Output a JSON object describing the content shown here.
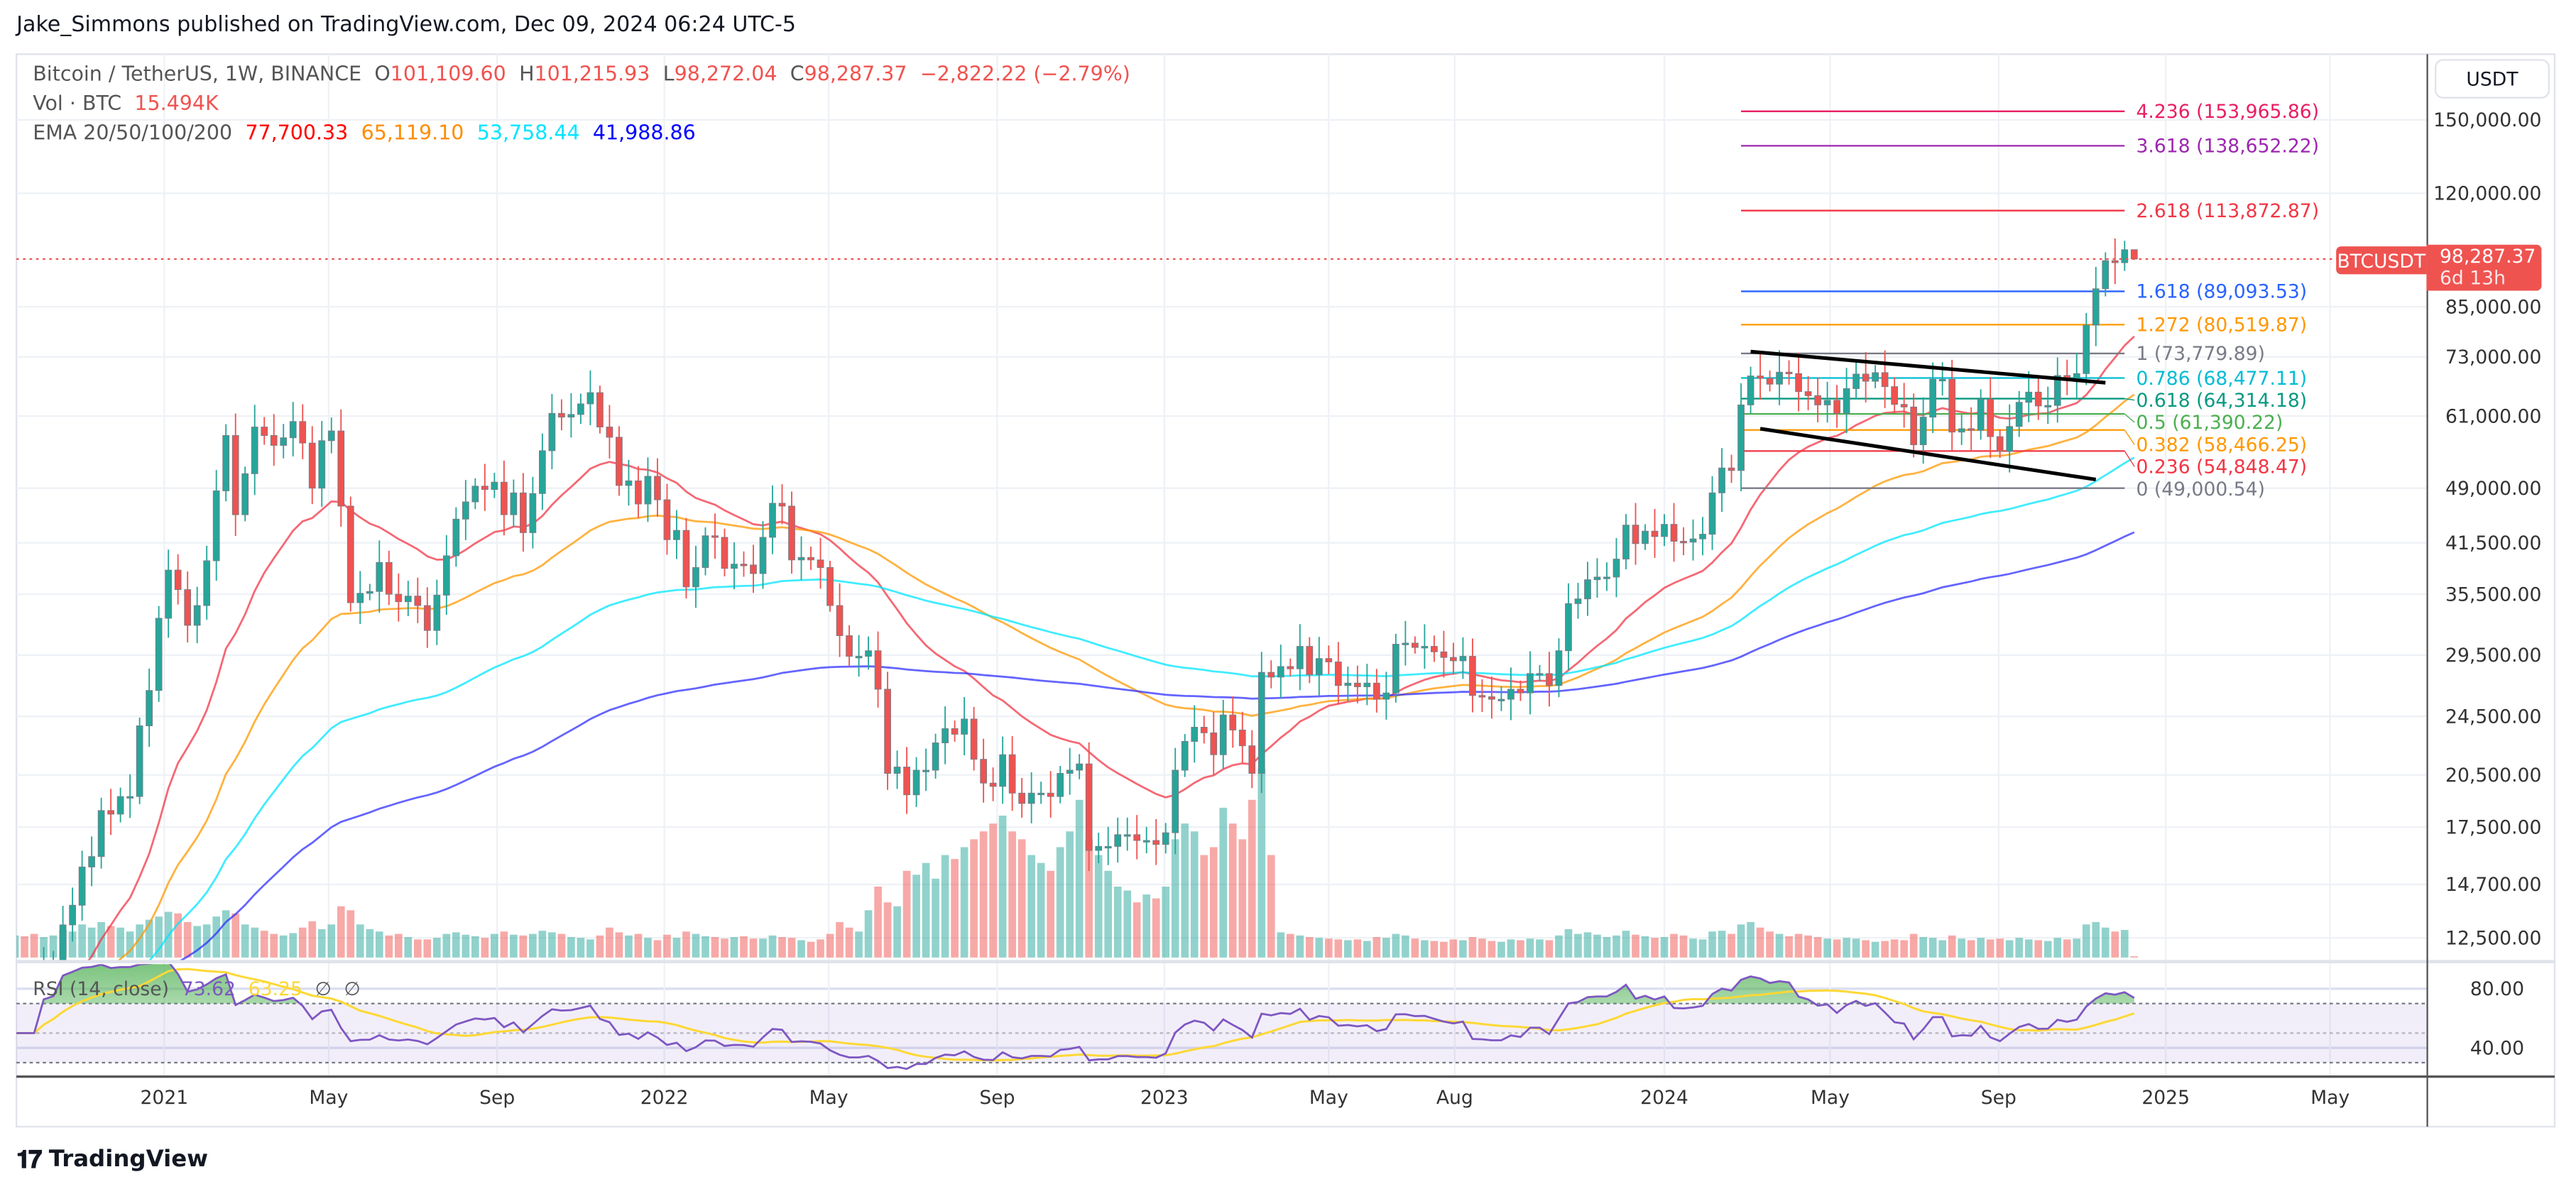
{
  "header": {
    "title": "Jake_Simmons published on TradingView.com, Dec 09, 2024 06:24 UTC-5"
  },
  "legend": {
    "symbol": "Bitcoin / TetherUS, 1W, BINANCE",
    "o_label": "O",
    "o": "101,109.60",
    "h_label": "H",
    "h": "101,215.93",
    "l_label": "L",
    "l": "98,272.04",
    "c_label": "C",
    "c": "98,287.37",
    "change": "−2,822.22 (−2.79%)",
    "vol_label": "Vol · BTC",
    "vol": "15.494K",
    "ema_label": "EMA 20/50/100/200",
    "ema_values": [
      "77,700.33",
      "65,119.10",
      "53,758.44",
      "41,988.86"
    ],
    "ema_colors": [
      "#ff0000",
      "#ff8c00",
      "#00e5ff",
      "#0000ff"
    ],
    "rsi_label": "RSI (14, close)",
    "rsi_value": "73.62",
    "rsi_ma_value": "63.25",
    "rsi_na1": "∅",
    "rsi_na2": "∅"
  },
  "price_axis": {
    "currency": "USDT",
    "labels": [
      "150,000.00",
      "120,000.00",
      "85,000.00",
      "73,000.00",
      "61,000.00",
      "49,000.00",
      "41,500.00",
      "35,500.00",
      "29,500.00",
      "24,500.00",
      "20,500.00",
      "17,500.00",
      "14,700.00",
      "12,500.00"
    ],
    "values": [
      150000,
      120000,
      85000,
      73000,
      61000,
      49000,
      41500,
      35500,
      29500,
      24500,
      20500,
      17500,
      14700,
      12500
    ],
    "last_symbol": "BTCUSDT",
    "last_price": "98,287.37",
    "countdown": "6d 13h"
  },
  "rsi_axis": {
    "labels": [
      "80.00",
      "40.00"
    ],
    "values": [
      80,
      40
    ]
  },
  "time_axis": [
    {
      "label": "2021",
      "date": "2021-01-01"
    },
    {
      "label": "May",
      "date": "2021-05-01"
    },
    {
      "label": "Sep",
      "date": "2021-09-01"
    },
    {
      "label": "2022",
      "date": "2022-01-01"
    },
    {
      "label": "May",
      "date": "2022-05-01"
    },
    {
      "label": "Sep",
      "date": "2022-09-01"
    },
    {
      "label": "2023",
      "date": "2023-01-01"
    },
    {
      "label": "May",
      "date": "2023-05-01"
    },
    {
      "label": "Aug",
      "date": "2023-08-01"
    },
    {
      "label": "2024",
      "date": "2024-01-01"
    },
    {
      "label": "May",
      "date": "2024-05-01"
    },
    {
      "label": "Sep",
      "date": "2024-09-01"
    },
    {
      "label": "2025",
      "date": "2025-01-01"
    },
    {
      "label": "May",
      "date": "2025-05-01"
    }
  ],
  "footer": {
    "brand": "TradingView",
    "logo": "TV"
  },
  "colors": {
    "up": "#26a69a",
    "down": "#ef5350",
    "rsi": "#7e57c2",
    "rsi_ma": "#fdd835",
    "last_price": "#ef5350"
  },
  "chart_data": {
    "type": "candlestick",
    "title": "Bitcoin / TetherUS, 1W, BINANCE",
    "y_scale": "log",
    "ylim": [
      10500,
      165000
    ],
    "grid": true,
    "first_week": "2020-09-14",
    "interval": "1W",
    "last_candle": {
      "open": 101109.6,
      "high": 101215.93,
      "low": 98272.04,
      "close": 98287.37
    },
    "weekly_close": [
      10900,
      10800,
      10600,
      11400,
      11500,
      13000,
      13800,
      15500,
      16000,
      18400,
      18200,
      19200,
      19200,
      23800,
      26500,
      33000,
      38200,
      36000,
      32300,
      34300,
      39300,
      48600,
      57500,
      45200,
      51200,
      59000,
      57500,
      55800,
      57100,
      60000,
      56200,
      49000,
      56600,
      58300,
      46400,
      34600,
      35600,
      35800,
      39100,
      35500,
      34700,
      35300,
      34300,
      31800,
      35400,
      39900,
      44600,
      47000,
      49300,
      48800,
      49900,
      45200,
      48300,
      42800,
      48200,
      54900,
      61500,
      60800,
      61300,
      63300,
      65500,
      59000,
      57200,
      49400,
      50100,
      46700,
      50800,
      47300,
      41900,
      43100,
      36300,
      38500,
      42400,
      42200,
      38400,
      38900,
      38800,
      37800,
      42200,
      46800,
      46400,
      39400,
      39700,
      39400,
      38500,
      34300,
      31300,
      29400,
      29400,
      29900,
      26600,
      20600,
      21000,
      19300,
      20800,
      20800,
      22600,
      23600,
      23200,
      24300,
      21500,
      20000,
      19800,
      21800,
      19400,
      18800,
      19400,
      19400,
      19200,
      20600,
      20800,
      21200,
      16300,
      16500,
      16500,
      17100,
      17100,
      16800,
      16800,
      16600,
      17200,
      20800,
      22700,
      23700,
      23300,
      21800,
      24600,
      23500,
      22400,
      20600,
      28000,
      27600,
      28500,
      28300,
      30300,
      27800,
      29200,
      28900,
      26900,
      27100,
      26800,
      27100,
      25800,
      26300,
      30500,
      30600,
      30200,
      30300,
      29800,
      29300,
      29000,
      29400,
      26100,
      26000,
      25800,
      25800,
      26600,
      26300,
      27900,
      27900,
      26900,
      29900,
      34500,
      35000,
      37100,
      37400,
      37400,
      39500,
      43800,
      41400,
      43000,
      42300,
      43900,
      41700,
      41600,
      42000,
      42600,
      48300,
      52100,
      51700,
      63100,
      68900,
      68400,
      67200,
      69700,
      69400,
      65700,
      64900,
      63100,
      64000,
      61500,
      66300,
      69300,
      67800,
      69600,
      66700,
      63200,
      62700,
      55900,
      60800,
      68200,
      68200,
      58100,
      58700,
      58400,
      64200,
      57300,
      54800,
      59100,
      63600,
      65600,
      62900,
      63000,
      69000,
      68000,
      69400,
      80400,
      89800,
      97800,
      97200,
      101109.6,
      98287.37
    ],
    "weekly_volume_k_btc": [
      280,
      270,
      300,
      260,
      280,
      350,
      330,
      420,
      380,
      450,
      400,
      380,
      330,
      420,
      480,
      520,
      580,
      560,
      450,
      400,
      420,
      520,
      600,
      560,
      420,
      380,
      340,
      300,
      280,
      310,
      380,
      460,
      360,
      420,
      650,
      600,
      420,
      360,
      330,
      280,
      300,
      260,
      230,
      230,
      250,
      300,
      320,
      290,
      270,
      250,
      300,
      330,
      290,
      280,
      300,
      340,
      320,
      300,
      260,
      250,
      230,
      280,
      380,
      320,
      280,
      300,
      250,
      220,
      290,
      250,
      330,
      300,
      270,
      260,
      240,
      260,
      270,
      240,
      240,
      280,
      260,
      250,
      220,
      200,
      230,
      300,
      450,
      380,
      330,
      600,
      900,
      700,
      650,
      1100,
      1050,
      1200,
      1000,
      1300,
      1250,
      1400,
      1500,
      1600,
      1700,
      1800,
      1600,
      1500,
      1300,
      1200,
      1100,
      1400,
      1600,
      2000,
      1500,
      1300,
      1100,
      900,
      850,
      700,
      800,
      750,
      900,
      1500,
      1700,
      1600,
      1300,
      1400,
      1900,
      1700,
      1500,
      2000,
      2400,
      1300,
      320,
      300,
      280,
      260,
      250,
      240,
      230,
      220,
      230,
      210,
      260,
      250,
      300,
      280,
      240,
      220,
      210,
      200,
      230,
      220,
      260,
      240,
      210,
      200,
      230,
      220,
      240,
      230,
      220,
      280,
      360,
      300,
      320,
      290,
      260,
      280,
      340,
      290,
      270,
      250,
      260,
      300,
      280,
      240,
      230,
      330,
      340,
      300,
      420,
      450,
      380,
      330,
      300,
      270,
      300,
      280,
      260,
      240,
      230,
      250,
      240,
      220,
      200,
      210,
      230,
      220,
      300,
      260,
      250,
      220,
      280,
      240,
      220,
      250,
      230,
      240,
      220,
      250,
      230,
      220,
      210,
      250,
      230,
      240,
      420,
      450,
      380,
      330,
      350,
      15.494
    ],
    "ema_periods": [
      20,
      50,
      100,
      200
    ],
    "ema_last": [
      77700.33,
      65119.1,
      53758.44,
      41988.86
    ],
    "rsi": {
      "period": 14,
      "ma_period": 14,
      "last": 73.62,
      "ma_last": 63.25,
      "upper": 70,
      "middle": 50,
      "lower": 30
    },
    "fibonacci": {
      "start_date": "2024-02-26",
      "end_date": "2024-12-02",
      "levels": [
        {
          "ratio": "4.236",
          "price": 153965.86,
          "label": "(153,965.86)",
          "color": "#e91e63"
        },
        {
          "ratio": "3.618",
          "price": 138652.22,
          "label": "(138,652.22)",
          "color": "#9c27b0"
        },
        {
          "ratio": "2.618",
          "price": 113872.87,
          "label": "(113,872.87)",
          "color": "#f23645"
        },
        {
          "ratio": "1.618",
          "price": 89093.53,
          "label": "(89,093.53)",
          "color": "#2962ff"
        },
        {
          "ratio": "1.272",
          "price": 80519.87,
          "label": "(80,519.87)",
          "color": "#ff9800"
        },
        {
          "ratio": "1",
          "price": 73779.89,
          "label": "(73,779.89)",
          "color": "#787b86"
        },
        {
          "ratio": "0.786",
          "price": 68477.11,
          "label": "(68,477.11)",
          "color": "#00bcd4"
        },
        {
          "ratio": "0.618",
          "price": 64314.18,
          "label": "(64,314.18)",
          "color": "#089981"
        },
        {
          "ratio": "0.5",
          "price": 61390.22,
          "label": "(61,390.22)",
          "color": "#4caf50"
        },
        {
          "ratio": "0.382",
          "price": 58466.25,
          "label": "(58,466.25)",
          "color": "#ff9800"
        },
        {
          "ratio": "0.236",
          "price": 54848.47,
          "label": "(54,848.47)",
          "color": "#f23645"
        },
        {
          "ratio": "0",
          "price": 49000.54,
          "label": "(49,000.54)",
          "color": "#787b86"
        }
      ]
    },
    "trendlines": [
      {
        "from": {
          "date": "2024-03-04",
          "price": 74200
        },
        "to": {
          "date": "2024-11-18",
          "price": 67500
        },
        "color": "#000000"
      },
      {
        "from": {
          "date": "2024-03-11",
          "price": 58700
        },
        "to": {
          "date": "2024-11-11",
          "price": 50300
        },
        "color": "#000000"
      }
    ]
  }
}
